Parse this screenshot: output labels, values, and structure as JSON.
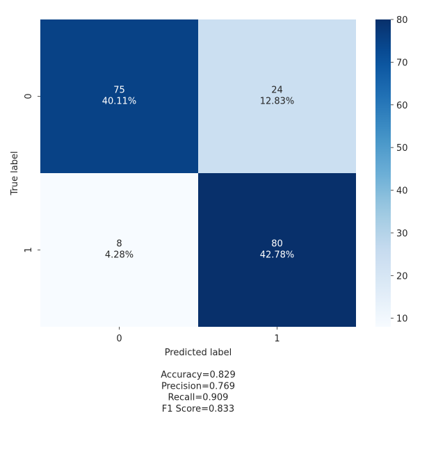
{
  "chart_data": {
    "type": "heatmap",
    "x_categories": [
      "0",
      "1"
    ],
    "y_categories": [
      "0",
      "1"
    ],
    "values": [
      [
        75,
        24
      ],
      [
        8,
        80
      ]
    ],
    "percent_labels": [
      [
        "40.11%",
        "12.83%"
      ],
      [
        "4.28%",
        "42.78%"
      ]
    ],
    "xlabel": "Predicted label",
    "ylabel": "True label",
    "colorbar": {
      "min": 8,
      "max": 80,
      "ticks": [
        10,
        20,
        30,
        40,
        50,
        60,
        70,
        80
      ],
      "colormap": "Blues"
    },
    "metrics": [
      "Accuracy=0.829",
      "Precision=0.769",
      "Recall=0.909",
      "F1 Score=0.833"
    ]
  }
}
